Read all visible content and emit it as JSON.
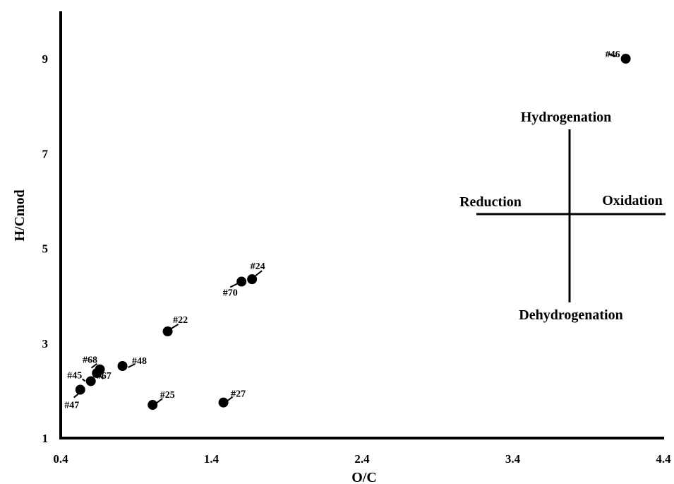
{
  "chart_data": {
    "type": "scatter",
    "title": "",
    "xlabel": "O/C",
    "ylabel": "H/Cmod",
    "xlim": [
      0.4,
      4.4
    ],
    "ylim": [
      1,
      10
    ],
    "x_ticks": [
      "0.4",
      "1.4",
      "2.4",
      "3.4",
      "4.4"
    ],
    "y_ticks": [
      "1",
      "3",
      "5",
      "7",
      "9"
    ],
    "grid": false,
    "marker_color": "#000000",
    "points": [
      {
        "label": "#46",
        "x": 4.15,
        "y": 9.0
      },
      {
        "label": "#24",
        "x": 1.67,
        "y": 4.35
      },
      {
        "label": "#70",
        "x": 1.6,
        "y": 4.3
      },
      {
        "label": "#22",
        "x": 1.11,
        "y": 3.25
      },
      {
        "label": "#48",
        "x": 0.81,
        "y": 2.52
      },
      {
        "label": "#68",
        "x": 0.66,
        "y": 2.45
      },
      {
        "label": "#67",
        "x": 0.64,
        "y": 2.37
      },
      {
        "label": "#45",
        "x": 0.6,
        "y": 2.2
      },
      {
        "label": "#47",
        "x": 0.53,
        "y": 2.02
      },
      {
        "label": "#25",
        "x": 1.01,
        "y": 1.7
      },
      {
        "label": "#27",
        "x": 1.48,
        "y": 1.75
      }
    ],
    "annotations": {
      "top": "Hydrogenation",
      "left": "Reduction",
      "right": "Oxidation",
      "bottom": "Dehydrogenation"
    }
  }
}
